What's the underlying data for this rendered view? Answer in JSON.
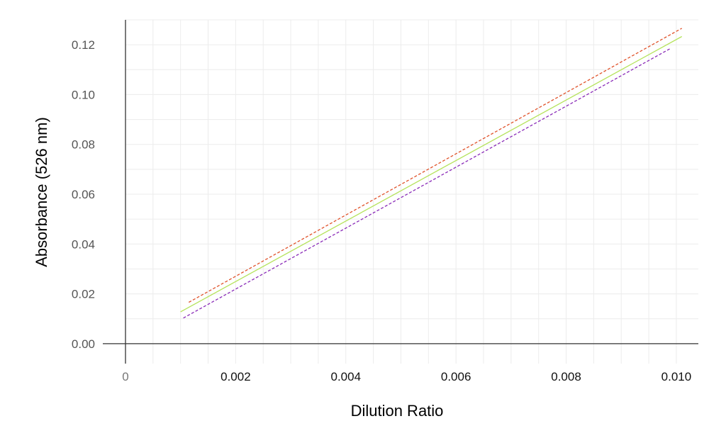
{
  "chart_data": {
    "type": "line",
    "xlabel": "Dilution Ratio",
    "ylabel": "Absorbance (526 nm)",
    "xlim": [
      0,
      0.0104
    ],
    "ylim": [
      -0.008,
      0.13
    ],
    "x_ticks": [
      0,
      0.002,
      0.004,
      0.006,
      0.008,
      0.01
    ],
    "x_tick_labels": [
      "0",
      "0.002",
      "0.004",
      "0.006",
      "0.008",
      "0.010"
    ],
    "y_ticks": [
      0,
      0.02,
      0.04,
      0.06,
      0.08,
      0.1,
      0.12
    ],
    "y_tick_labels": [
      "0.00",
      "0.02",
      "0.04",
      "0.06",
      "0.08",
      "0.10",
      "0.12"
    ],
    "grid": true,
    "legend": "none",
    "series": [
      {
        "color": "#e0522a",
        "dash": "dotted",
        "x": [
          0.00115,
          0.0101
        ],
        "y": [
          0.0166,
          0.1266
        ]
      },
      {
        "color": "#b5e35c",
        "dash": "solid",
        "x": [
          0.001,
          0.0101
        ],
        "y": [
          0.0128,
          0.1233
        ]
      },
      {
        "color": "#8a2bb8",
        "dash": "dotted",
        "x": [
          0.00105,
          0.0099
        ],
        "y": [
          0.0103,
          0.1186
        ]
      }
    ]
  }
}
